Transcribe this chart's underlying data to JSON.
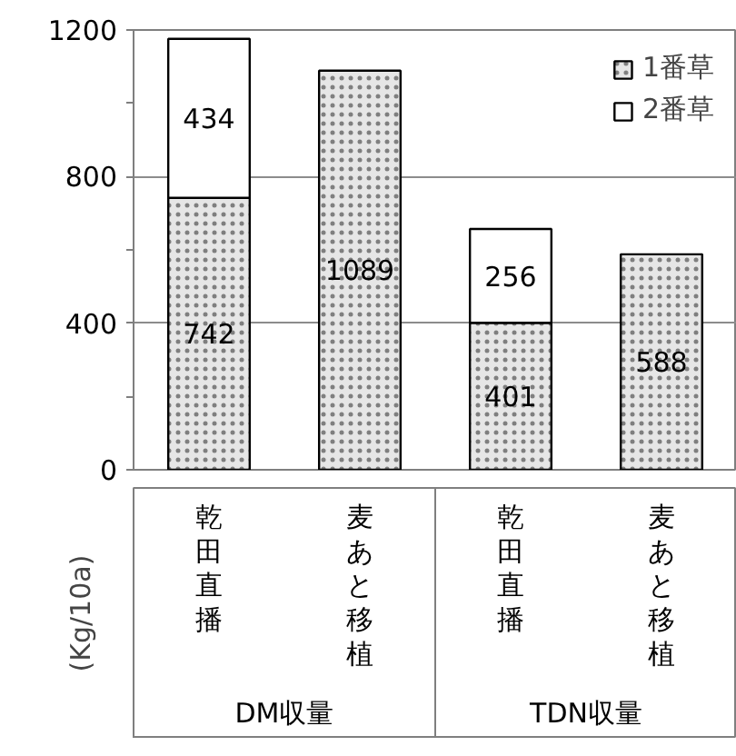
{
  "chart_data": {
    "type": "bar",
    "stacked": true,
    "categories": [
      "乾田直播",
      "麦あと移植",
      "乾田直播",
      "麦あと移植"
    ],
    "series": [
      {
        "name": "1番草",
        "color": "#e6e6e6",
        "values": [
          742,
          1089,
          401,
          588
        ]
      },
      {
        "name": "2番草",
        "color": "#ffffff",
        "values": [
          434,
          null,
          256,
          null
        ]
      }
    ],
    "ylabel": "(Kg/10a)",
    "annotations": [
      "DM収量",
      "TDN収量"
    ],
    "ylim": [
      0,
      1200
    ],
    "yticks": [
      0,
      {
        "value": 200,
        "label": null
      },
      400,
      {
        "value": 600,
        "label": null
      },
      800,
      {
        "value": 1000,
        "label": null
      },
      1200
    ],
    "grid": "y",
    "legend": "top right",
    "data_labels": true
  }
}
